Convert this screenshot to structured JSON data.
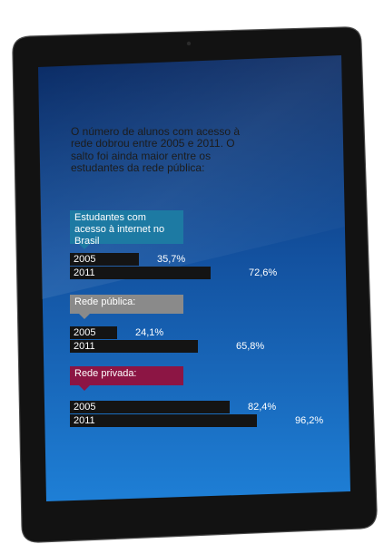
{
  "intro_text": "O número de alunos com acesso à rede dobrou entre 2005 e 2011. O salto foi ainda maior entre os estudantes da rede pública:",
  "colors": {
    "brasil": "#1d7aa3",
    "publica": "#8a8a8a",
    "privada": "#8c1544",
    "bar": "#141414",
    "screen_top": "#0a2a63",
    "screen_bottom": "#1e7fd6"
  },
  "chart_data": {
    "type": "bar",
    "orientation": "horizontal",
    "unit": "%",
    "groups": [
      {
        "key": "brasil",
        "label": "Estudantes com acesso à internet no Brasil",
        "items": [
          {
            "year": "2005",
            "value": 35.7,
            "label": "35,7%"
          },
          {
            "year": "2011",
            "value": 72.6,
            "label": "72,6%"
          }
        ]
      },
      {
        "key": "publica",
        "label": "Rede pública:",
        "items": [
          {
            "year": "2005",
            "value": 24.1,
            "label": "24,1%"
          },
          {
            "year": "2011",
            "value": 65.8,
            "label": "65,8%"
          }
        ]
      },
      {
        "key": "privada",
        "label": "Rede privada:",
        "items": [
          {
            "year": "2005",
            "value": 82.4,
            "label": "82,4%"
          },
          {
            "year": "2011",
            "value": 96.2,
            "label": "96,2%"
          }
        ]
      }
    ]
  }
}
